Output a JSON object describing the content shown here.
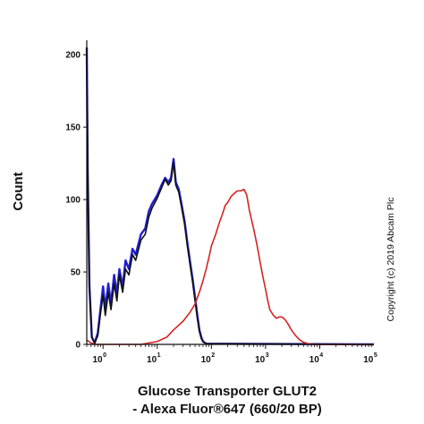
{
  "chart_data": {
    "type": "line",
    "xscale": "log",
    "xlim": [
      0.5,
      100000
    ],
    "ylim": [
      0,
      210
    ],
    "xticks": [
      {
        "value": 1,
        "base": "10",
        "exp": "0"
      },
      {
        "value": 10,
        "base": "10",
        "exp": "1"
      },
      {
        "value": 100,
        "base": "10",
        "exp": "2"
      },
      {
        "value": 1000,
        "base": "10",
        "exp": "3"
      },
      {
        "value": 10000,
        "base": "10",
        "exp": "4"
      },
      {
        "value": 100000,
        "base": "10",
        "exp": "5"
      }
    ],
    "yticks": [
      0,
      50,
      100,
      150,
      200
    ],
    "xlabel_line1": "Glucose Transporter GLUT2",
    "xlabel_line2": "- Alexa Fluor®647 (660/20 BP)",
    "ylabel": "Count",
    "annotation": "Copyright (c) 2019 Abcam Plc",
    "grid": false,
    "series": [
      {
        "color": "#1f1fd0",
        "width": 2.4,
        "points": [
          [
            0.5,
            205
          ],
          [
            0.52,
            120
          ],
          [
            0.56,
            40
          ],
          [
            0.62,
            5
          ],
          [
            0.7,
            1
          ],
          [
            0.8,
            8
          ],
          [
            0.9,
            25
          ],
          [
            1.0,
            40
          ],
          [
            1.1,
            25
          ],
          [
            1.25,
            42
          ],
          [
            1.4,
            28
          ],
          [
            1.6,
            48
          ],
          [
            1.8,
            35
          ],
          [
            2.0,
            52
          ],
          [
            2.3,
            40
          ],
          [
            2.6,
            58
          ],
          [
            3.0,
            52
          ],
          [
            3.5,
            66
          ],
          [
            4.0,
            62
          ],
          [
            5.0,
            76
          ],
          [
            6.0,
            80
          ],
          [
            7.0,
            92
          ],
          [
            8.0,
            97
          ],
          [
            10,
            103
          ],
          [
            12,
            110
          ],
          [
            14,
            115
          ],
          [
            16,
            112
          ],
          [
            18,
            115
          ],
          [
            20,
            128
          ],
          [
            22,
            112
          ],
          [
            25,
            107
          ],
          [
            28,
            97
          ],
          [
            32,
            85
          ],
          [
            36,
            70
          ],
          [
            40,
            58
          ],
          [
            45,
            45
          ],
          [
            50,
            32
          ],
          [
            55,
            20
          ],
          [
            60,
            10
          ],
          [
            65,
            5
          ],
          [
            70,
            2
          ],
          [
            80,
            0.5
          ],
          [
            100000,
            0
          ]
        ]
      },
      {
        "color": "#111111",
        "width": 1.6,
        "points": [
          [
            0.5,
            205
          ],
          [
            0.52,
            120
          ],
          [
            0.56,
            40
          ],
          [
            0.62,
            5
          ],
          [
            0.7,
            1
          ],
          [
            0.8,
            6
          ],
          [
            0.9,
            22
          ],
          [
            1.0,
            34
          ],
          [
            1.1,
            20
          ],
          [
            1.25,
            36
          ],
          [
            1.4,
            24
          ],
          [
            1.6,
            42
          ],
          [
            1.8,
            30
          ],
          [
            2.0,
            48
          ],
          [
            2.3,
            36
          ],
          [
            2.6,
            52
          ],
          [
            3.0,
            48
          ],
          [
            3.5,
            62
          ],
          [
            4.0,
            58
          ],
          [
            5.0,
            72
          ],
          [
            6.0,
            76
          ],
          [
            7.0,
            88
          ],
          [
            8.0,
            94
          ],
          [
            10,
            101
          ],
          [
            12,
            108
          ],
          [
            14,
            114
          ],
          [
            16,
            110
          ],
          [
            18,
            113
          ],
          [
            20,
            126
          ],
          [
            22,
            110
          ],
          [
            25,
            105
          ],
          [
            28,
            95
          ],
          [
            32,
            83
          ],
          [
            36,
            68
          ],
          [
            40,
            56
          ],
          [
            45,
            43
          ],
          [
            50,
            30
          ],
          [
            55,
            18
          ],
          [
            60,
            9
          ],
          [
            65,
            4
          ],
          [
            70,
            2
          ],
          [
            80,
            0.5
          ],
          [
            100000,
            0
          ]
        ]
      },
      {
        "color": "#d42424",
        "width": 1.6,
        "points": [
          [
            0.5,
            3
          ],
          [
            0.6,
            1
          ],
          [
            0.7,
            0
          ],
          [
            5,
            0
          ],
          [
            10,
            2
          ],
          [
            15,
            5
          ],
          [
            20,
            10
          ],
          [
            30,
            16
          ],
          [
            40,
            22
          ],
          [
            50,
            28
          ],
          [
            60,
            36
          ],
          [
            70,
            44
          ],
          [
            80,
            52
          ],
          [
            90,
            60
          ],
          [
            100,
            68
          ],
          [
            120,
            76
          ],
          [
            140,
            84
          ],
          [
            160,
            90
          ],
          [
            180,
            96
          ],
          [
            200,
            98
          ],
          [
            230,
            102
          ],
          [
            260,
            104
          ],
          [
            300,
            106
          ],
          [
            350,
            106
          ],
          [
            400,
            107
          ],
          [
            450,
            103
          ],
          [
            500,
            93
          ],
          [
            600,
            80
          ],
          [
            700,
            68
          ],
          [
            800,
            56
          ],
          [
            900,
            46
          ],
          [
            1000,
            38
          ],
          [
            1100,
            30
          ],
          [
            1200,
            24
          ],
          [
            1400,
            20
          ],
          [
            1600,
            18
          ],
          [
            1800,
            19
          ],
          [
            2000,
            19
          ],
          [
            2300,
            17
          ],
          [
            2600,
            14
          ],
          [
            3000,
            10
          ],
          [
            3600,
            6
          ],
          [
            4300,
            3
          ],
          [
            5000,
            1.5
          ],
          [
            6000,
            0.5
          ],
          [
            8000,
            0
          ],
          [
            100000,
            0
          ]
        ]
      }
    ]
  }
}
